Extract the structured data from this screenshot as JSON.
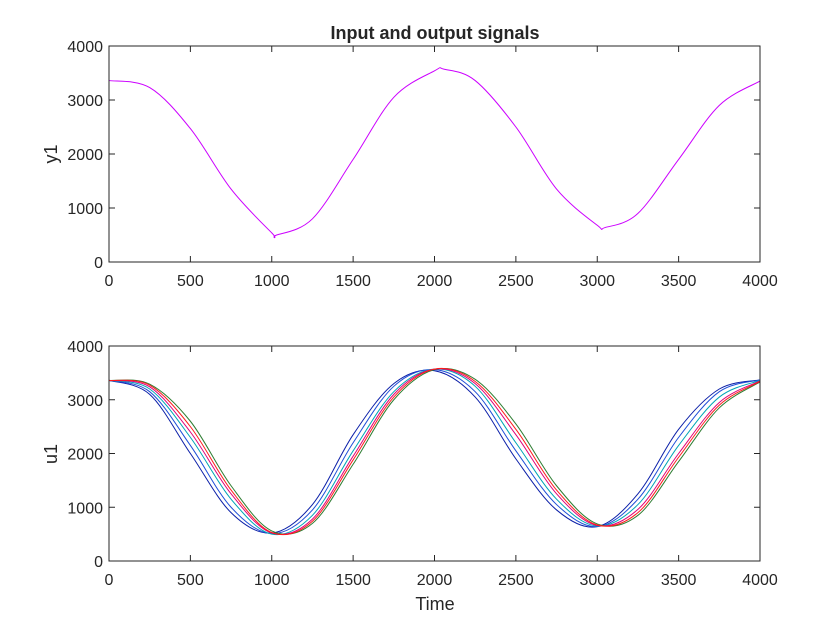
{
  "chart_data": [
    {
      "type": "line",
      "title": "Input and output signals",
      "xlabel": "",
      "ylabel": "y1",
      "xlim": [
        0,
        4000
      ],
      "ylim": [
        0,
        4000
      ],
      "xticks": [
        0,
        500,
        1000,
        1500,
        2000,
        2500,
        3000,
        3500,
        4000
      ],
      "yticks": [
        0,
        1000,
        2000,
        3000,
        4000
      ],
      "grid": false,
      "series": [
        {
          "color": "#cc00ff",
          "x": [
            0,
            250,
            500,
            750,
            1000,
            1030,
            1250,
            1500,
            1750,
            2000,
            2060,
            2250,
            2500,
            2750,
            3000,
            3050,
            3250,
            3500,
            3750,
            4000
          ],
          "y": [
            3360,
            3230,
            2470,
            1350,
            540,
            500,
            800,
            1900,
            3050,
            3540,
            3570,
            3360,
            2500,
            1350,
            680,
            640,
            900,
            1900,
            2900,
            3350
          ]
        }
      ]
    },
    {
      "type": "line",
      "title": "",
      "xlabel": "Time",
      "ylabel": "u1",
      "xlim": [
        0,
        4000
      ],
      "ylim": [
        0,
        4000
      ],
      "xticks": [
        0,
        500,
        1000,
        1500,
        2000,
        2500,
        3000,
        3500,
        4000
      ],
      "yticks": [
        0,
        1000,
        2000,
        3000,
        4000
      ],
      "grid": false,
      "series": [
        {
          "color": "#0b1fa8",
          "x": [
            0,
            250,
            500,
            750,
            1000,
            1250,
            1500,
            1750,
            2000,
            2250,
            2500,
            2750,
            3000,
            3250,
            3500,
            3750,
            4000
          ],
          "y": [
            3360,
            3100,
            2000,
            900,
            520,
            1050,
            2350,
            3300,
            3540,
            3050,
            1900,
            950,
            640,
            1250,
            2450,
            3200,
            3370
          ]
        },
        {
          "color": "#1d4ed8",
          "x": [
            0,
            250,
            500,
            750,
            1000,
            1250,
            1500,
            1750,
            2000,
            2250,
            2500,
            2750,
            3000,
            3250,
            3500,
            3750,
            4000
          ],
          "y": [
            3360,
            3150,
            2150,
            1000,
            510,
            950,
            2200,
            3250,
            3560,
            3150,
            2050,
            1050,
            640,
            1150,
            2300,
            3150,
            3370
          ]
        },
        {
          "color": "#00a5b5",
          "x": [
            0,
            250,
            500,
            750,
            1000,
            1250,
            1500,
            1750,
            2000,
            2250,
            2500,
            2750,
            3000,
            3250,
            3500,
            3750,
            4000
          ],
          "y": [
            3360,
            3200,
            2300,
            1150,
            500,
            850,
            2050,
            3150,
            3570,
            3250,
            2200,
            1150,
            650,
            1050,
            2150,
            3050,
            3360
          ]
        },
        {
          "color": "#2e7d32",
          "x": [
            0,
            250,
            500,
            750,
            1000,
            1250,
            1500,
            1750,
            2000,
            2250,
            2500,
            2750,
            3000,
            3250,
            3500,
            3750,
            4000
          ],
          "y": [
            3360,
            3290,
            2600,
            1400,
            560,
            700,
            1800,
            3000,
            3560,
            3380,
            2550,
            1400,
            690,
            850,
            1850,
            2850,
            3330
          ]
        },
        {
          "color": "#e0007a",
          "x": [
            0,
            250,
            500,
            750,
            1000,
            1250,
            1500,
            1750,
            2000,
            2250,
            2500,
            2750,
            3000,
            3250,
            3500,
            3750,
            4000
          ],
          "y": [
            3360,
            3240,
            2400,
            1250,
            520,
            780,
            1950,
            3100,
            3570,
            3300,
            2350,
            1250,
            660,
            960,
            2000,
            2950,
            3350
          ]
        },
        {
          "color": "#ff1a1a",
          "x": [
            0,
            250,
            500,
            750,
            1000,
            1250,
            1500,
            1750,
            2000,
            2250,
            2500,
            2750,
            3000,
            3250,
            3500,
            3750,
            4000
          ],
          "y": [
            3360,
            3270,
            2500,
            1320,
            530,
            740,
            1880,
            3050,
            3570,
            3340,
            2450,
            1320,
            670,
            900,
            1930,
            2900,
            3340
          ]
        }
      ]
    }
  ]
}
